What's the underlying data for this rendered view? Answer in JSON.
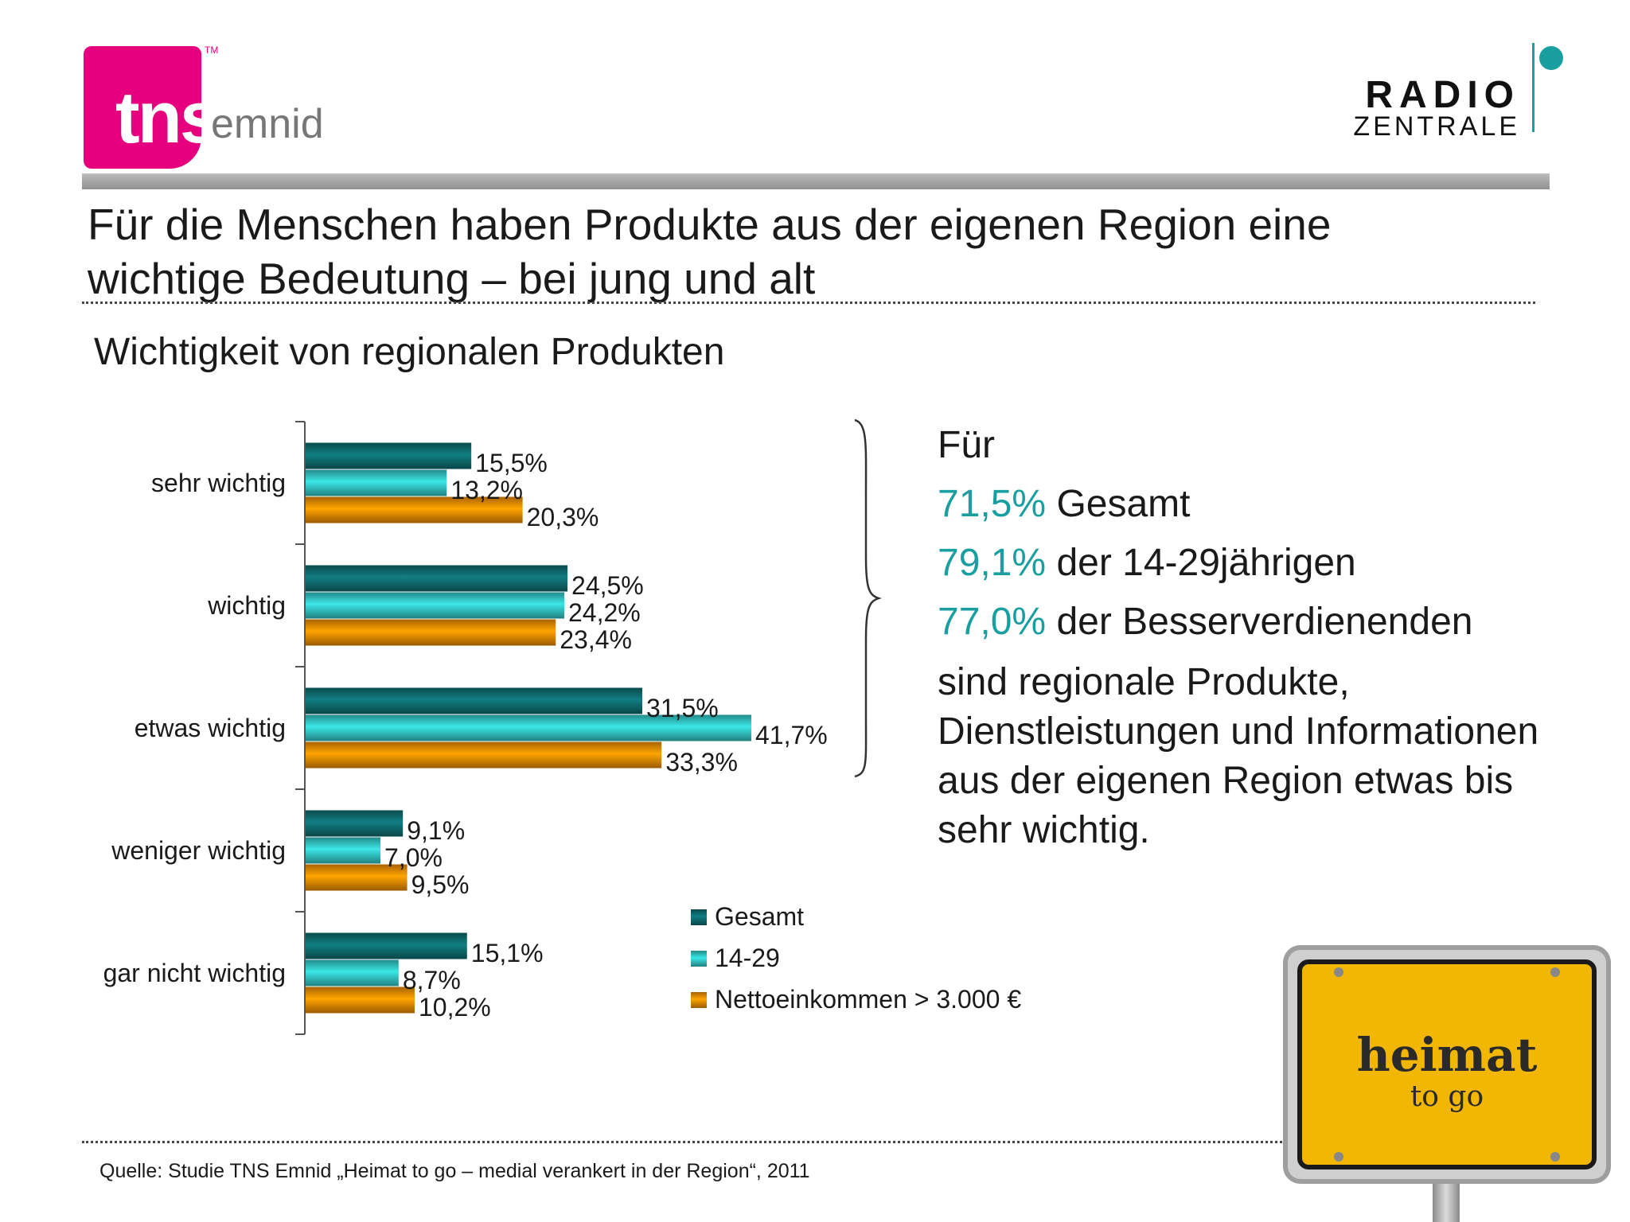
{
  "logos": {
    "tns": {
      "word": "tns",
      "sub": "emnid",
      "tm": "TM"
    },
    "radio": {
      "line1": "RADIO",
      "line2": "ZENTRALE"
    }
  },
  "headline": "Für die Menschen haben Produkte aus der eigenen Region eine wichtige Bedeutung – bei jung und alt",
  "chart_data": {
    "type": "bar",
    "orientation": "horizontal",
    "title": "Wichtigkeit von regionalen Produkten",
    "categories": [
      "sehr wichtig",
      "wichtig",
      "etwas wichtig",
      "weniger wichtig",
      "gar nicht wichtig"
    ],
    "series": [
      {
        "name": "Gesamt",
        "values": [
          15.5,
          24.5,
          31.5,
          9.1,
          15.1
        ],
        "labels": [
          "15,5%",
          "24,5%",
          "31,5%",
          "9,1%",
          "15,1%"
        ],
        "color": "#0e6b6e"
      },
      {
        "name": "14-29",
        "values": [
          13.2,
          24.2,
          41.7,
          7.0,
          8.7
        ],
        "labels": [
          "13,2%",
          "24,2%",
          "41,7%",
          "7,0%",
          "8,7%"
        ],
        "color": "#33c4c4"
      },
      {
        "name": "Nettoeinkommen > 3.000 €",
        "values": [
          20.3,
          23.4,
          33.3,
          9.5,
          10.2
        ],
        "labels": [
          "20,3%",
          "23,4%",
          "33,3%",
          "9,5%",
          "10,2%"
        ],
        "color": "#f08c00"
      }
    ],
    "xlim": [
      0,
      45
    ],
    "grid": false,
    "legend_position": "bottom-right"
  },
  "summary": {
    "intro": "Für",
    "stats": [
      {
        "value": "71,5%",
        "text": "Gesamt"
      },
      {
        "value": "79,1%",
        "text": "der 14-29jährigen"
      },
      {
        "value": "77,0%",
        "text": "der Besserverdienenden"
      }
    ],
    "conclusion": "sind regionale Produkte, Dienstleistungen und Informationen aus der eigenen Region etwas bis sehr wichtig."
  },
  "sign": {
    "main": "heimat",
    "sub": "to go"
  },
  "source": "Quelle: Studie TNS Emnid „Heimat to go – medial verankert in der Region“, 2011"
}
